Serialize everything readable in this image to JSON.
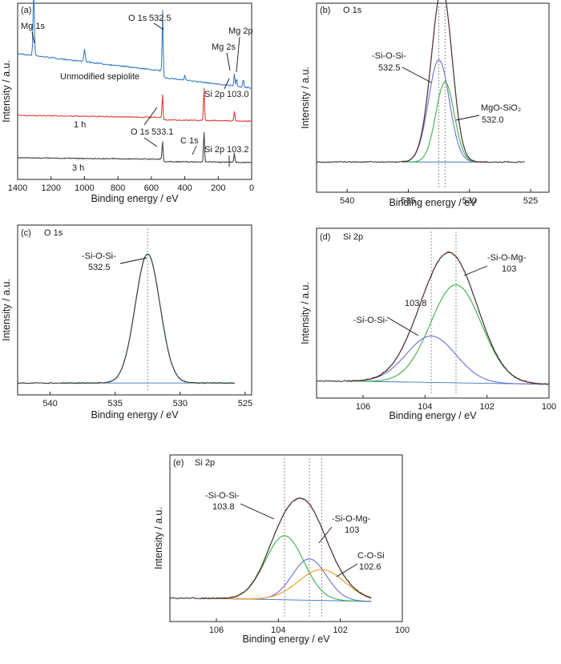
{
  "colors": {
    "raw": "#3b3b3b",
    "envelope": "#d0342c",
    "green": "#3bb14a",
    "blue": "#6c6fd6",
    "orange": "#e69a1f",
    "baseline": "#3a78c2",
    "unmod": "#3d7dc8",
    "h1": "#e0403a",
    "h3": "#444444"
  },
  "chart_data": [
    {
      "id": "a",
      "type": "line",
      "panel_label": "(a)",
      "xlabel": "Binding energy / eV",
      "ylabel": "Intensity / a.u.",
      "xlim": [
        1400,
        0
      ],
      "xreversed": true,
      "xticks": [
        1400,
        1200,
        1000,
        800,
        600,
        400,
        200,
        0
      ],
      "series": [
        {
          "name": "Unmodified sepiolite",
          "color_key": "unmod",
          "offset": 2,
          "peaks": [
            [
              1304,
              1.2
            ],
            [
              1000,
              0.25
            ],
            [
              532.5,
              1.3
            ],
            [
              400,
              0.1
            ],
            [
              103,
              0.25
            ],
            [
              90,
              0.15
            ],
            [
              50,
              0.15
            ]
          ]
        },
        {
          "name": "1 h",
          "color_key": "h1",
          "offset": 1,
          "peaks": [
            [
              533.1,
              0.55
            ],
            [
              285,
              0.7
            ],
            [
              103,
              0.2
            ]
          ]
        },
        {
          "name": "3 h",
          "color_key": "h3",
          "offset": 0,
          "peaks": [
            [
              533.1,
              0.45
            ],
            [
              285,
              0.65
            ],
            [
              103.2,
              0.2
            ]
          ]
        }
      ],
      "annotations": [
        {
          "text": "Mg 1s"
        },
        {
          "text": "O 1s",
          "value": "532.5"
        },
        {
          "text": "Mg 2s"
        },
        {
          "text": "Mg 2p"
        },
        {
          "text": "Si 2p",
          "value": "103.0"
        },
        {
          "text": "O 1s",
          "value": "533.1"
        },
        {
          "text": "C 1s"
        },
        {
          "text": "Si 2p",
          "value": "103.2"
        }
      ]
    },
    {
      "id": "b",
      "type": "line",
      "panel_label": "(b)",
      "title": "O 1s",
      "xlabel": "Binding energy / eV",
      "ylabel": "Intensity / a.u.",
      "xlim": [
        542.5,
        523.5
      ],
      "xreversed": true,
      "xticks": [
        540,
        535,
        530,
        525
      ],
      "components": [
        {
          "label": "-Si-O-Si-",
          "value": "532.5",
          "center": 532.5,
          "height": 0.6,
          "sigma": 0.85,
          "color_key": "blue"
        },
        {
          "label": "MgO-SiO₂",
          "value": "532.0",
          "center": 532.0,
          "height": 0.47,
          "sigma": 0.75,
          "color_key": "green"
        }
      ],
      "raw_range": [
        542.5,
        525.5
      ],
      "component_range": [
        535.5,
        528.5
      ],
      "vlines": [
        532.5,
        532.0
      ]
    },
    {
      "id": "c",
      "type": "line",
      "panel_label": "(c)",
      "title": "O 1s",
      "xlabel": "Binding energy / eV",
      "ylabel": "Intensity / a.u.",
      "xlim": [
        542.5,
        524.5
      ],
      "xreversed": true,
      "xticks": [
        540,
        535,
        530,
        525
      ],
      "components": [
        {
          "label": "-Si-O-Si-",
          "value": "532.5",
          "center": 532.5,
          "height": 1.0,
          "sigma": 0.95,
          "color_key": "green"
        }
      ],
      "raw_range": [
        542.5,
        525.8
      ],
      "component_range": [
        539.0,
        525.8
      ],
      "vlines": [
        532.5
      ]
    },
    {
      "id": "d",
      "type": "line",
      "panel_label": "(d)",
      "title": "Si 2p",
      "xlabel": "Binding energy / eV",
      "ylabel": "Intensity / a.u.",
      "xlim": [
        107.5,
        100
      ],
      "xreversed": true,
      "xticks": [
        106,
        104,
        102,
        100
      ],
      "components": [
        {
          "label": "-Si-O-Si-",
          "value": "103.8",
          "center": 103.8,
          "height": 0.35,
          "sigma": 0.8,
          "color_key": "blue"
        },
        {
          "label": "-Si-O-Mg-",
          "value": "103",
          "center": 103.0,
          "height": 0.74,
          "sigma": 0.82,
          "color_key": "green"
        }
      ],
      "raw_range": [
        107.5,
        100.0
      ],
      "component_range": [
        106.5,
        100.0
      ],
      "vlines": [
        103.8,
        103.0
      ]
    },
    {
      "id": "e",
      "type": "line",
      "panel_label": "(e)",
      "title": "Si 2p",
      "xlabel": "Binding energy / eV",
      "ylabel": "Intensity / a.u.",
      "xlim": [
        107.5,
        100
      ],
      "xreversed": true,
      "xticks": [
        106,
        104,
        102,
        100
      ],
      "components": [
        {
          "label": "-Si-O-Si-",
          "value": "103.8",
          "center": 103.8,
          "height": 0.62,
          "sigma": 0.62,
          "color_key": "green"
        },
        {
          "label": "-Si-O-Mg-",
          "value": "103",
          "center": 103.0,
          "height": 0.4,
          "sigma": 0.55,
          "color_key": "blue"
        },
        {
          "label": "C-O-Si",
          "value": "102.6",
          "center": 102.6,
          "height": 0.3,
          "sigma": 0.75,
          "color_key": "orange"
        }
      ],
      "raw_range": [
        107.5,
        101.0
      ],
      "component_range": [
        106.5,
        101.0
      ],
      "vlines": [
        103.8,
        103.0,
        102.6
      ]
    }
  ]
}
